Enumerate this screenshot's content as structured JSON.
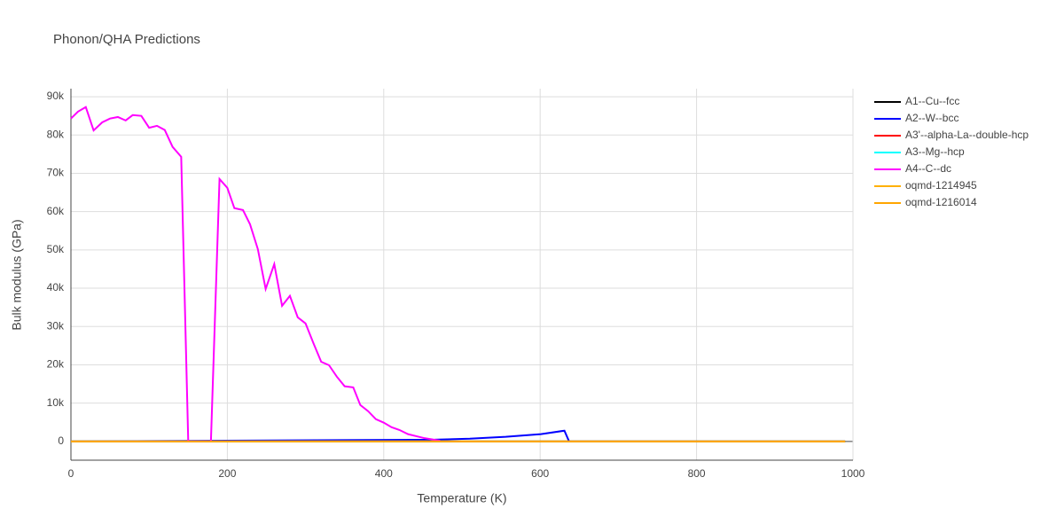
{
  "chart_data": {
    "type": "line",
    "title": "Phonon/QHA Predictions",
    "x_label": "Temperature (K)",
    "y_label": "Bulk modulus (GPa)",
    "xlim": [
      0,
      1000
    ],
    "ylim": [
      -4900,
      92100
    ],
    "xticks": [
      0,
      200,
      400,
      600,
      800,
      1000
    ],
    "yticks": [
      0,
      {
        "value": 10000,
        "label": "10k"
      },
      {
        "value": 20000,
        "label": "20k"
      },
      {
        "value": 30000,
        "label": "30k"
      },
      {
        "value": 40000,
        "label": "40k"
      },
      {
        "value": 50000,
        "label": "50k"
      },
      {
        "value": 60000,
        "label": "60k"
      },
      {
        "value": 70000,
        "label": "70k"
      },
      {
        "value": 80000,
        "label": "80k"
      },
      {
        "value": 90000,
        "label": "90k"
      }
    ],
    "grid": true,
    "legend": "right",
    "series": [
      {
        "name": "A1--Cu--fcc",
        "color": "#000000",
        "x": [
          0,
          990
        ],
        "values": [
          0,
          0
        ]
      },
      {
        "name": "A2--W--bcc",
        "color": "#0000ff",
        "x": [
          0,
          465,
          510,
          556,
          601,
          631,
          637,
          990
        ],
        "values": [
          0,
          450,
          700,
          1200,
          1900,
          2800,
          0,
          0
        ]
      },
      {
        "name": "A3'--alpha-La--double-hcp",
        "color": "#ff0000",
        "x": [
          0,
          990
        ],
        "values": [
          0,
          0
        ]
      },
      {
        "name": "A3--Mg--hcp",
        "color": "#00ffff",
        "x": [
          0,
          990
        ],
        "values": [
          0,
          0
        ]
      },
      {
        "name": "A4--C--dc",
        "color": "#ff00ff",
        "x": [
          0,
          9,
          19,
          29,
          40,
          50,
          60,
          70,
          79,
          90,
          100,
          110,
          120,
          130,
          141,
          150,
          179,
          190,
          200,
          209,
          220,
          229,
          239,
          249,
          260,
          270,
          280,
          290,
          300,
          310,
          320,
          330,
          340,
          350,
          361,
          370,
          380,
          390,
          400,
          410,
          420,
          431,
          441,
          451,
          472
        ],
        "values": [
          84300,
          86100,
          87300,
          81200,
          83300,
          84300,
          84700,
          83800,
          85200,
          85000,
          81900,
          82400,
          81300,
          76900,
          74300,
          0,
          0,
          68500,
          66200,
          60900,
          60400,
          56700,
          50200,
          39800,
          46300,
          35400,
          38000,
          32400,
          30800,
          25700,
          20800,
          19900,
          16900,
          14400,
          14100,
          9500,
          7900,
          5800,
          4900,
          3700,
          3000,
          1900,
          1400,
          900,
          200
        ]
      },
      {
        "name": "oqmd-1214945",
        "color": "#ffb000",
        "x": [
          0,
          990
        ],
        "values": [
          0,
          0
        ]
      },
      {
        "name": "oqmd-1216014",
        "color": "#ffa500",
        "x": [
          0,
          990
        ],
        "values": [
          0,
          0
        ]
      }
    ]
  }
}
